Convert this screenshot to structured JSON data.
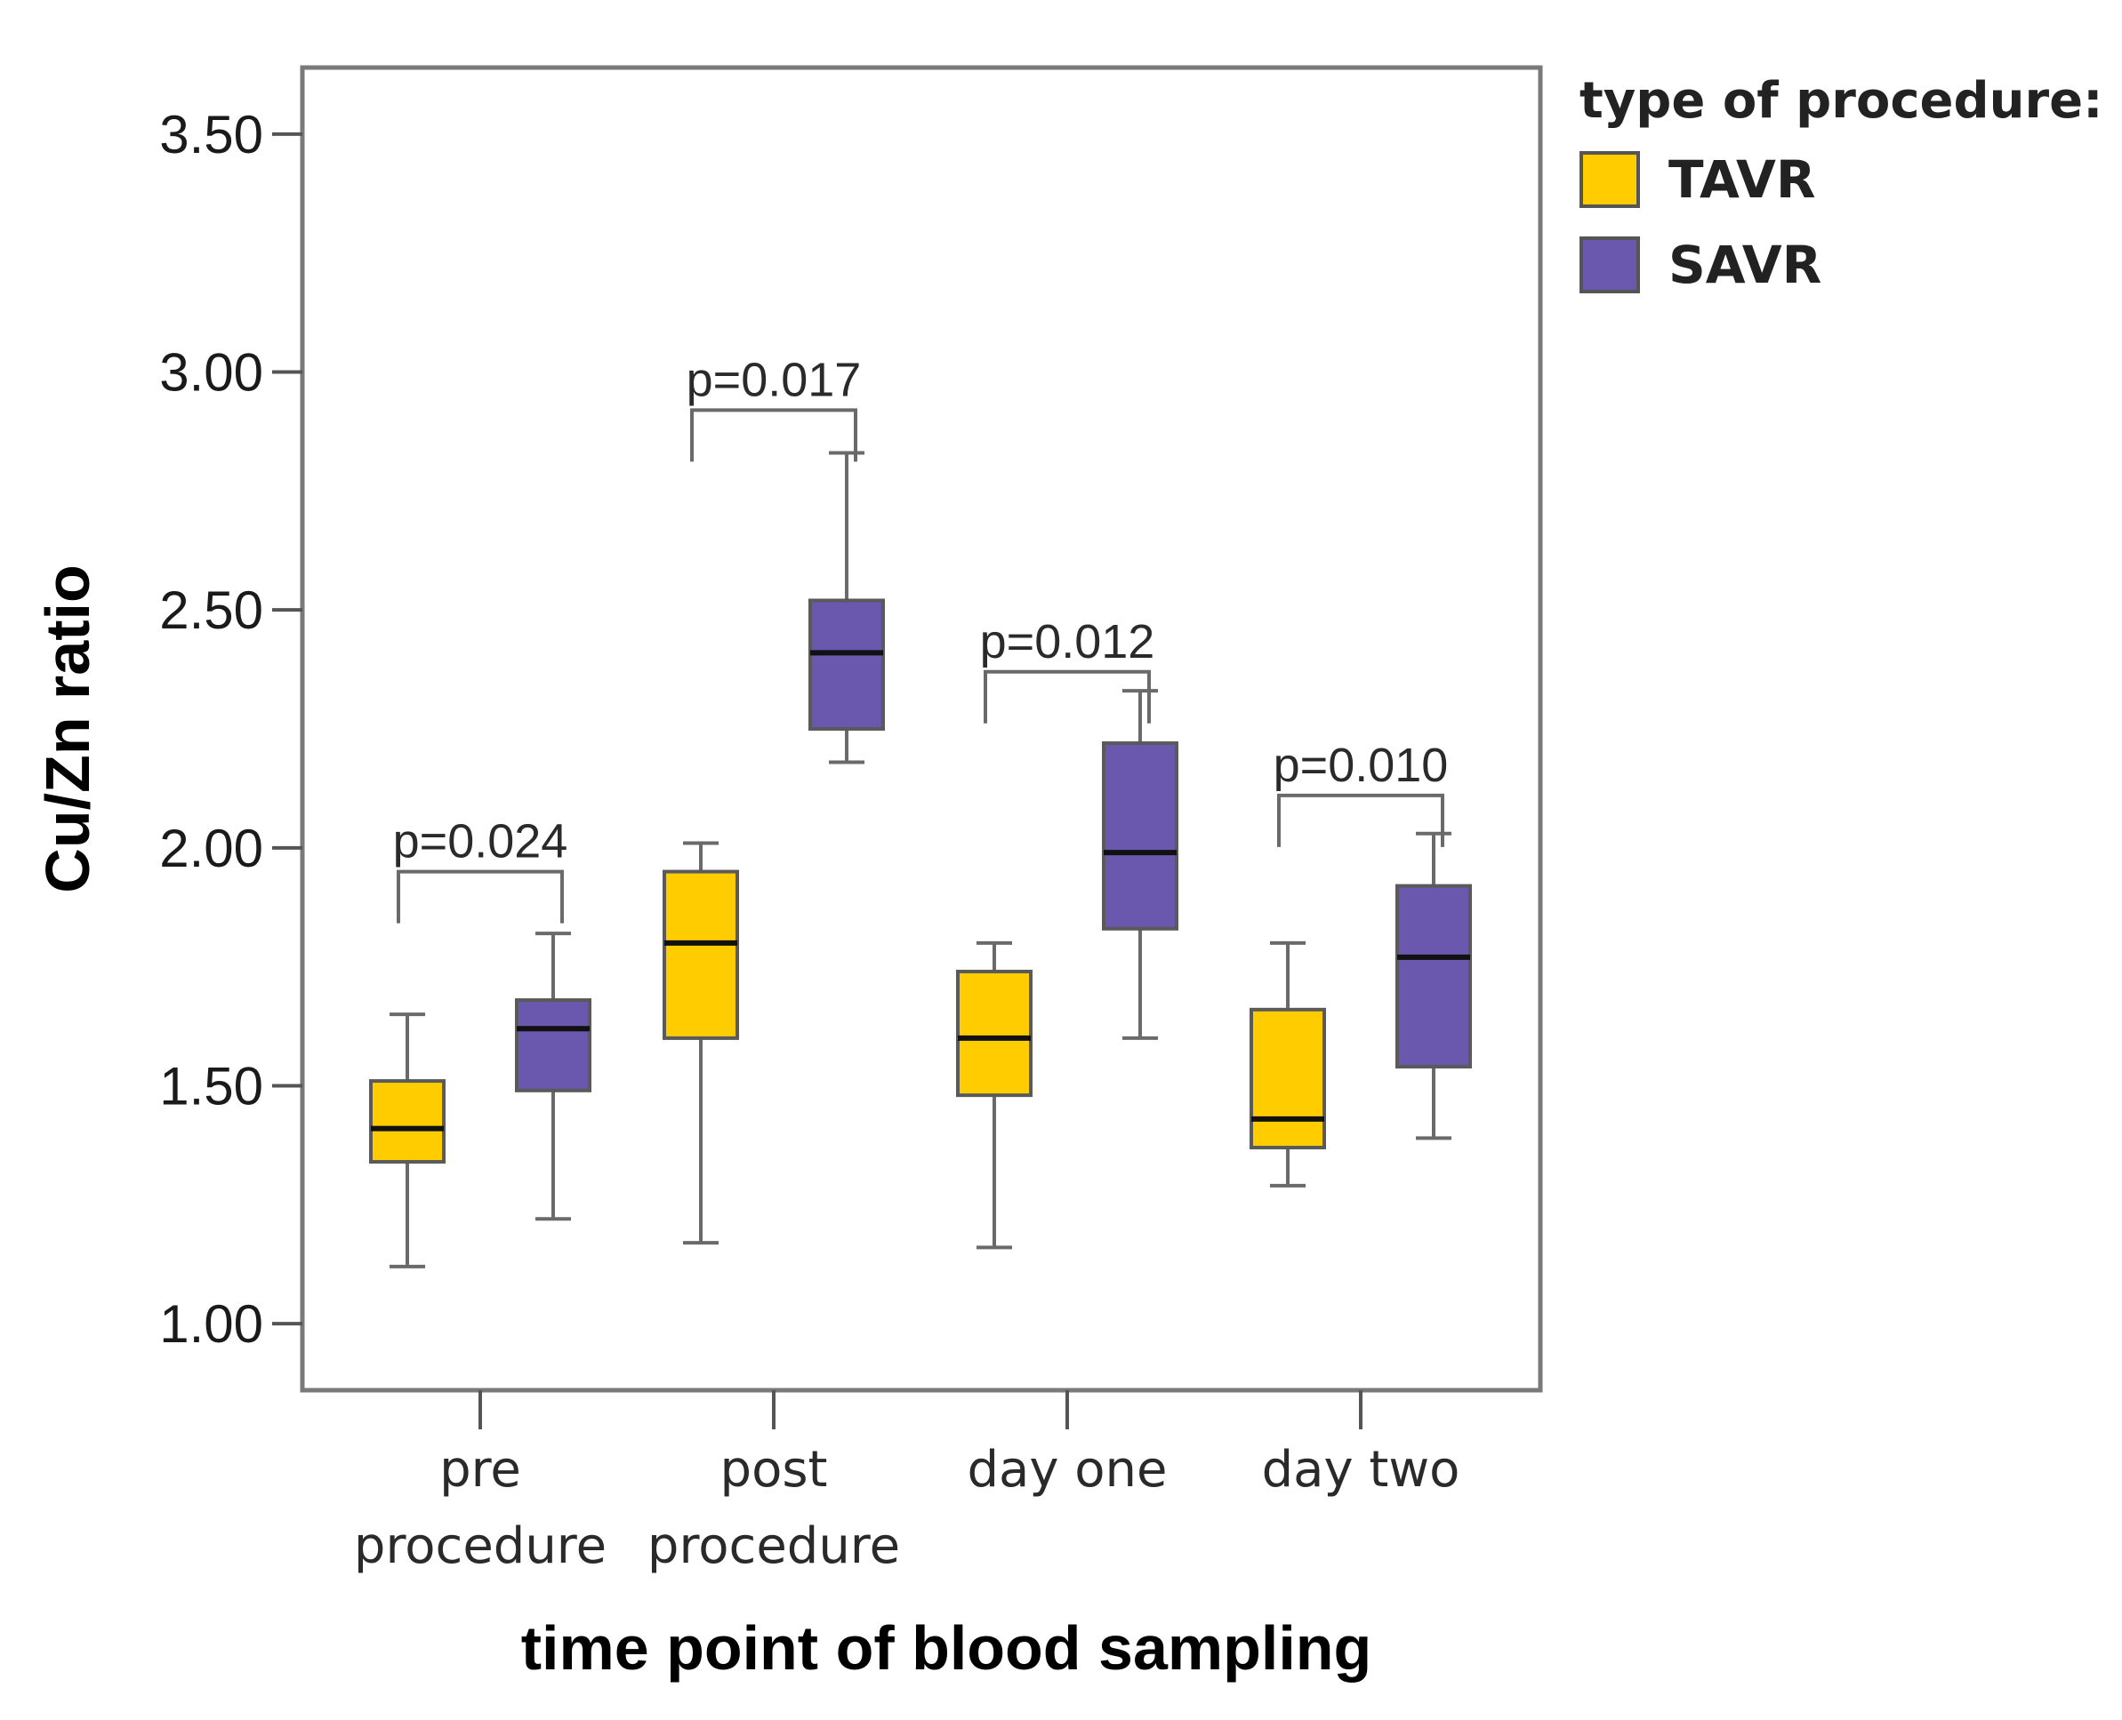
{
  "chart_data": {
    "type": "boxplot",
    "ylabel": "Cu/Zn ratio",
    "xlabel": "time point of blood sampling",
    "ylim": [
      0.86,
      3.64
    ],
    "yticks": [
      "1.00",
      "1.50",
      "2.00",
      "2.50",
      "3.00",
      "3.50"
    ],
    "ytick_values": [
      1.0,
      1.5,
      2.0,
      2.5,
      3.0,
      3.5
    ],
    "categories": [
      [
        "pre",
        "procedure"
      ],
      [
        "post",
        "procedure"
      ],
      [
        "day one"
      ],
      [
        "day two"
      ]
    ],
    "legend": {
      "title": "type of procedure:",
      "placement": "right"
    },
    "series": [
      {
        "name": "TAVR",
        "color": "#FFCC00",
        "boxes": [
          {
            "min": 1.12,
            "q1": 1.34,
            "median": 1.41,
            "q3": 1.51,
            "max": 1.65
          },
          {
            "min": 1.17,
            "q1": 1.6,
            "median": 1.8,
            "q3": 1.95,
            "max": 2.01
          },
          {
            "min": 1.16,
            "q1": 1.48,
            "median": 1.6,
            "q3": 1.74,
            "max": 1.8
          },
          {
            "min": 1.29,
            "q1": 1.37,
            "median": 1.43,
            "q3": 1.66,
            "max": 1.8
          }
        ]
      },
      {
        "name": "SAVR",
        "color": "#6A58AE",
        "boxes": [
          {
            "min": 1.22,
            "q1": 1.49,
            "median": 1.62,
            "q3": 1.68,
            "max": 1.82
          },
          {
            "min": 2.18,
            "q1": 2.25,
            "median": 2.41,
            "q3": 2.52,
            "max": 2.83
          },
          {
            "min": 1.6,
            "q1": 1.83,
            "median": 1.99,
            "q3": 2.22,
            "max": 2.33
          },
          {
            "min": 1.39,
            "q1": 1.54,
            "median": 1.77,
            "q3": 1.92,
            "max": 2.03
          }
        ]
      }
    ],
    "annotations": [
      {
        "text": "p=0.024",
        "category_index": 0,
        "y": 1.95
      },
      {
        "text": "p=0.017",
        "category_index": 1,
        "y": 2.92
      },
      {
        "text": "p=0.012",
        "category_index": 2,
        "y": 2.37
      },
      {
        "text": "p=0.010",
        "category_index": 3,
        "y": 2.11
      }
    ]
  }
}
